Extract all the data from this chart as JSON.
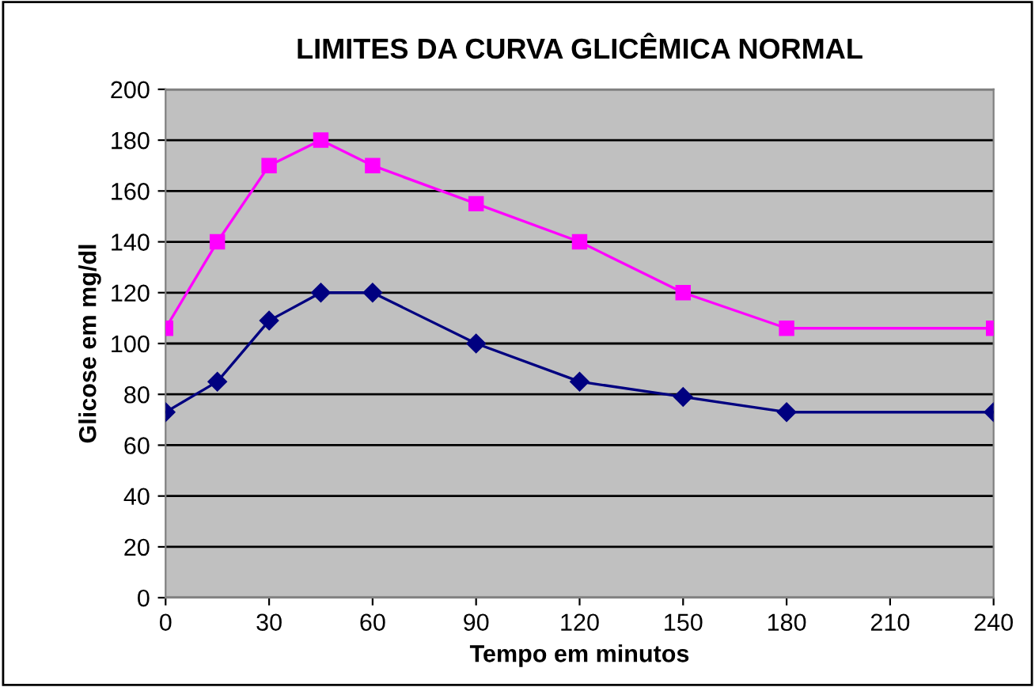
{
  "chart_data": {
    "type": "line",
    "title": "LIMITES DA CURVA GLICÊMICA NORMAL",
    "xlabel": "Tempo em minutos",
    "ylabel": "Glicose em mg/dl",
    "x": [
      0,
      15,
      30,
      45,
      60,
      90,
      120,
      150,
      180,
      240
    ],
    "series": [
      {
        "color": "#ff00ff",
        "marker": "square",
        "values": [
          106,
          140,
          170,
          180,
          170,
          155,
          140,
          120,
          106,
          106
        ]
      },
      {
        "color": "#000080",
        "marker": "diamond",
        "values": [
          73,
          85,
          109,
          120,
          120,
          100,
          85,
          79,
          73,
          73
        ]
      }
    ],
    "xlim": [
      0,
      240
    ],
    "xticks": [
      0,
      30,
      60,
      90,
      120,
      150,
      180,
      210,
      240
    ],
    "ylim": [
      0,
      200
    ],
    "yticks": [
      0,
      20,
      40,
      60,
      80,
      100,
      120,
      140,
      160,
      180,
      200
    ],
    "grid": "y",
    "legend": false,
    "line_style": "solid"
  }
}
